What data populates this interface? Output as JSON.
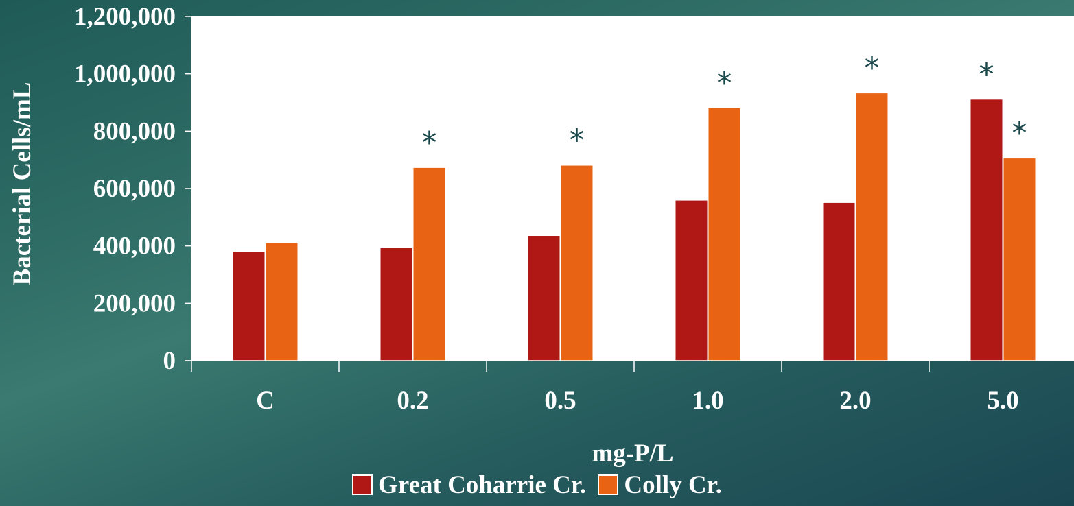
{
  "chart_data": {
    "type": "bar",
    "xlabel": "mg-P/L",
    "ylabel": "Bacterial Cells/mL",
    "categories": [
      "C",
      "0.2",
      "0.5",
      "1.0",
      "2.0",
      "5.0"
    ],
    "ylim": [
      0,
      1200000
    ],
    "yticks": [
      0,
      200000,
      400000,
      600000,
      800000,
      1000000,
      1200000
    ],
    "ytick_labels": [
      "0",
      "200,000",
      "400,000",
      "600,000",
      "800,000",
      "1,000,000",
      "1,200,000"
    ],
    "series": [
      {
        "name": "Great Coharrie Cr.",
        "color": "#b01815",
        "values": [
          380000,
          392000,
          435000,
          558000,
          550000,
          910000
        ],
        "significant": [
          false,
          false,
          false,
          false,
          false,
          true
        ]
      },
      {
        "name": "Colly Cr.",
        "color": "#e86414",
        "values": [
          410000,
          672000,
          680000,
          880000,
          932000,
          705000
        ],
        "significant": [
          false,
          true,
          true,
          true,
          true,
          true
        ]
      }
    ],
    "significance_marker": "*",
    "legend_position": "bottom",
    "grid": false
  }
}
